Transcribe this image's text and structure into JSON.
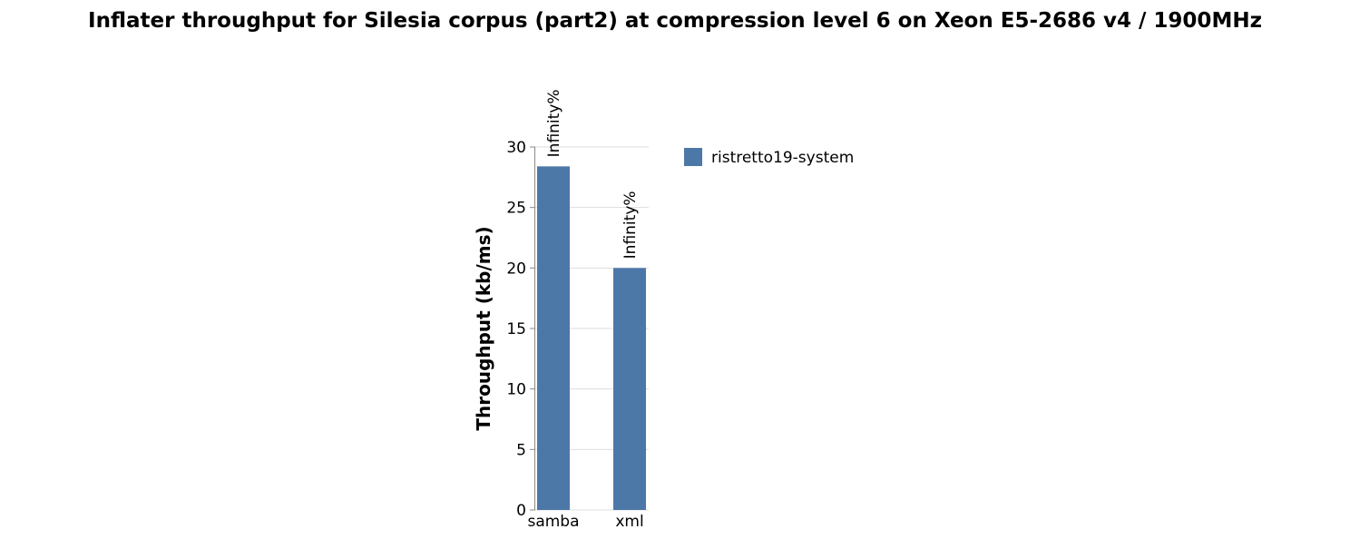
{
  "chart_data": {
    "type": "bar",
    "title": "Inflater throughput for Silesia corpus (part2) at compression level 6 on Xeon E5-2686 v4 / 1900MHz",
    "xlabel": "",
    "ylabel": "Throughput (kb/ms)",
    "ylim": [
      0,
      30
    ],
    "yticks": [
      0,
      5,
      10,
      15,
      20,
      25,
      30
    ],
    "categories": [
      "samba",
      "xml"
    ],
    "series": [
      {
        "name": "ristretto19-system",
        "color": "#4c78a8",
        "values": [
          28.4,
          20.0
        ],
        "labels": [
          "Infinity%",
          "Infinity%"
        ]
      }
    ],
    "grid": true,
    "legend": "right"
  }
}
